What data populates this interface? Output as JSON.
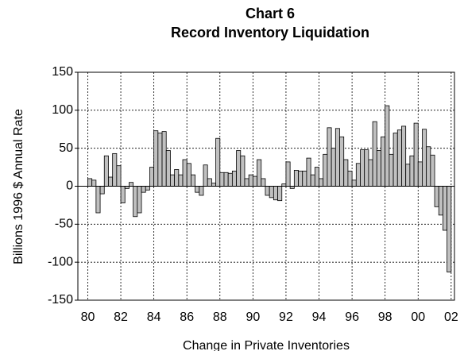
{
  "chart_data": {
    "type": "bar",
    "title": "Chart 6",
    "subtitle": "Record Inventory Liquidation",
    "y_label": "Billions 1996 $ Annual Rate",
    "x_label": "Change in Private Inventories",
    "x": [
      1980,
      1980.25,
      1980.5,
      1980.75,
      1981,
      1981.25,
      1981.5,
      1981.75,
      1982,
      1982.25,
      1982.5,
      1982.75,
      1983,
      1983.25,
      1983.5,
      1983.75,
      1984,
      1984.25,
      1984.5,
      1984.75,
      1985,
      1985.25,
      1985.5,
      1985.75,
      1986,
      1986.25,
      1986.5,
      1986.75,
      1987,
      1987.25,
      1987.5,
      1987.75,
      1988,
      1988.25,
      1988.5,
      1988.75,
      1989,
      1989.25,
      1989.5,
      1989.75,
      1990,
      1990.25,
      1990.5,
      1990.75,
      1991,
      1991.25,
      1991.5,
      1991.75,
      1992,
      1992.25,
      1992.5,
      1992.75,
      1993,
      1993.25,
      1993.5,
      1993.75,
      1994,
      1994.25,
      1994.5,
      1994.75,
      1995,
      1995.25,
      1995.5,
      1995.75,
      1996,
      1996.25,
      1996.5,
      1996.75,
      1997,
      1997.25,
      1997.5,
      1997.75,
      1998,
      1998.25,
      1998.5,
      1998.75,
      1999,
      1999.25,
      1999.5,
      1999.75,
      2000,
      2000.25,
      2000.5,
      2000.75,
      2001,
      2001.25,
      2001.5,
      2001.75
    ],
    "values": [
      10,
      8,
      -35,
      -10,
      40,
      12,
      43,
      27,
      -22,
      -3,
      5,
      -40,
      -35,
      -8,
      -5,
      25,
      73,
      70,
      72,
      47,
      15,
      22,
      15,
      35,
      30,
      15,
      -8,
      -12,
      28,
      10,
      4,
      63,
      18,
      18,
      17,
      20,
      47,
      40,
      10,
      15,
      13,
      35,
      10,
      -12,
      -15,
      -18,
      -19,
      3,
      32,
      -3,
      21,
      20,
      20,
      37,
      15,
      25,
      10,
      42,
      77,
      50,
      76,
      65,
      35,
      20,
      8,
      30,
      48,
      48,
      35,
      85,
      47,
      65,
      106,
      42,
      70,
      74,
      79,
      29,
      40,
      83,
      32,
      75,
      52,
      41,
      -27,
      -38,
      -58,
      -113
    ],
    "color": "#c0c0c0",
    "xlim": [
      1979.4,
      2002.2
    ],
    "xticks": [
      {
        "value": 1980,
        "label": "80"
      },
      {
        "value": 1982,
        "label": "82"
      },
      {
        "value": 1984,
        "label": "84"
      },
      {
        "value": 1986,
        "label": "86"
      },
      {
        "value": 1988,
        "label": "88"
      },
      {
        "value": 1990,
        "label": "90"
      },
      {
        "value": 1992,
        "label": "92"
      },
      {
        "value": 1994,
        "label": "94"
      },
      {
        "value": 1996,
        "label": "96"
      },
      {
        "value": 1998,
        "label": "98"
      },
      {
        "value": 2000,
        "label": "00"
      },
      {
        "value": 2002,
        "label": "02"
      }
    ],
    "ylim": [
      -150,
      150
    ],
    "yticks": [
      -150,
      -100,
      -50,
      0,
      50,
      100,
      150
    ],
    "grid": true
  }
}
